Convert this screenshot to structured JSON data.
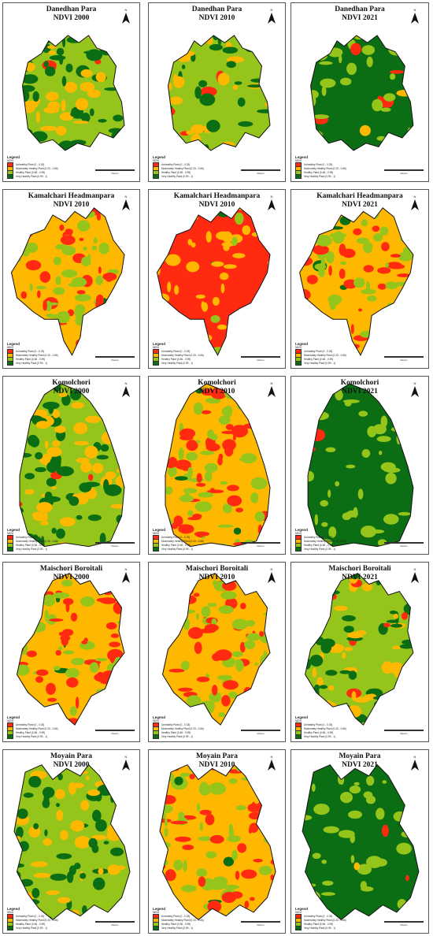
{
  "colors": {
    "unhealthy": "#ff2a10",
    "moderate": "#ffb800",
    "healthy": "#95c51a",
    "very_healthy": "#0b6e14"
  },
  "north_label": "N",
  "scale_unit": "Meters",
  "legend": {
    "title": "Legend",
    "subtitle": "NDVI",
    "items": [
      {
        "label": "Unhealthy Plant (0 - 0.33)",
        "color": "#ff2a10"
      },
      {
        "label": "Moderately Healthy Plant (0.33 - 0.66)",
        "color": "#ffb800"
      },
      {
        "label": "Healthy Plant (0.66 - 0.99)",
        "color": "#95c51a"
      },
      {
        "label": "Very Healthy Plant (0.99 - 1)",
        "color": "#0b6e14"
      }
    ]
  },
  "rows": [
    {
      "area": "Danedhan Para",
      "panels": [
        {
          "year_label": "NDVI 2000",
          "dominant": "healthy"
        },
        {
          "year_label": "NDVI 2010",
          "dominant": "healthy"
        },
        {
          "year_label": "NDVI 2021",
          "dominant": "very_healthy"
        }
      ]
    },
    {
      "area": "Kamalchari Headmanpara",
      "panels": [
        {
          "year_label": "NDVI 2010",
          "dominant": "moderate"
        },
        {
          "year_label": "NDVI 2010",
          "dominant": "unhealthy"
        },
        {
          "year_label": "NDVI 2021",
          "dominant": "moderate"
        }
      ]
    },
    {
      "area": "Komolchori",
      "panels": [
        {
          "year_label": "NDVI 2000",
          "dominant": "healthy"
        },
        {
          "year_label": "NDVI 2010",
          "dominant": "moderate"
        },
        {
          "year_label": "NDVI 2021",
          "dominant": "very_healthy"
        }
      ]
    },
    {
      "area": "Maischori Boroitali",
      "panels": [
        {
          "year_label": "NDVI 2000",
          "dominant": "moderate"
        },
        {
          "year_label": "NDVI 2010",
          "dominant": "moderate"
        },
        {
          "year_label": "NDVI 2021",
          "dominant": "healthy"
        }
      ]
    },
    {
      "area": "Moyain Para",
      "panels": [
        {
          "year_label": "NDVI 2000",
          "dominant": "healthy"
        },
        {
          "year_label": "NDVI 2010",
          "dominant": "moderate"
        },
        {
          "year_label": "NDVI 2021",
          "dominant": "very_healthy"
        }
      ]
    }
  ]
}
